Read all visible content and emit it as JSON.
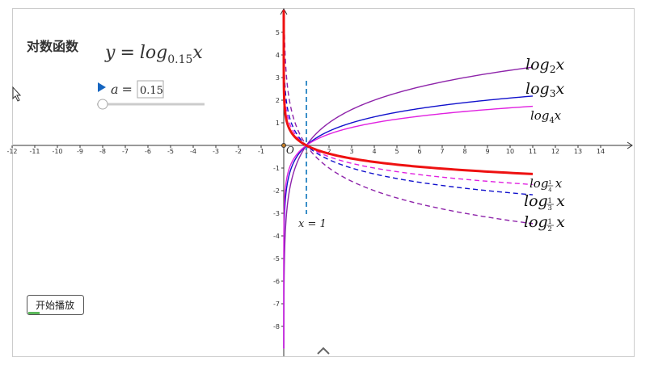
{
  "app": {
    "title": "对数函数",
    "formula": {
      "lhs": "y",
      "eq": "=",
      "fn": "log",
      "var": "x"
    },
    "slider": {
      "name": "a",
      "eq": "=",
      "value": 0.15
    },
    "button": "开始播放"
  },
  "graph": {
    "xlim": [
      -12.6,
      15.3
    ],
    "ylim": [
      -9,
      6
    ],
    "xticks": [
      -12,
      -11,
      -10,
      -9,
      -8,
      -7,
      -6,
      -5,
      -4,
      -3,
      -2,
      -1,
      1,
      2,
      3,
      4,
      5,
      6,
      7,
      8,
      9,
      10,
      11,
      12,
      13,
      14
    ],
    "yticks": [
      -8,
      -7,
      -6,
      -5,
      -4,
      -3,
      -2,
      -1,
      1,
      2,
      3,
      4,
      5
    ],
    "origin": "O",
    "x_end": 11,
    "vline": {
      "x": 1,
      "label": "x = 1"
    },
    "main_color": "#ee1111",
    "curves": [
      {
        "fn": "log",
        "base": "2",
        "var": "x",
        "color": "#8e24aa",
        "dashed": false
      },
      {
        "fn": "log",
        "base": "3",
        "var": "x",
        "color": "#1010cc",
        "dashed": false
      },
      {
        "fn": "log",
        "base": "4",
        "var": "x",
        "color": "#e020e0",
        "dashed": false
      },
      {
        "fn": "log",
        "base": {
          "num": "1",
          "den": "4"
        },
        "var": "x",
        "color": "#e020e0",
        "dashed": true
      },
      {
        "fn": "log",
        "base": {
          "num": "1",
          "den": "3"
        },
        "var": "x",
        "color": "#1010cc",
        "dashed": true
      },
      {
        "fn": "log",
        "base": {
          "num": "1",
          "den": "2"
        },
        "var": "x",
        "color": "#8e24aa",
        "dashed": true
      }
    ]
  }
}
